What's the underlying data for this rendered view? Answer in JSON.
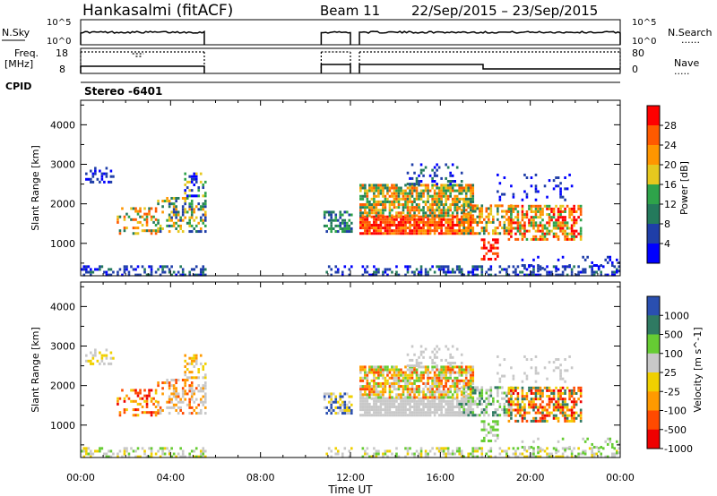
{
  "header": {
    "station": "Hankasalmi (fitACF)",
    "beam": "Beam 11",
    "date_range": "22/Sep/2015 – 23/Sep/2015"
  },
  "labels": {
    "nsky": "N.Sky",
    "nsearch": "N.Search",
    "freq_line1": "Freq.",
    "freq_line2": "[MHz]",
    "nave": "Nave",
    "cpid": "CPID",
    "cpid_value": "Stereo -6401",
    "noise_ticks_left": [
      "10^5",
      "10^0"
    ],
    "noise_ticks_right": [
      "10^5",
      "10^0"
    ],
    "freq_ticks": [
      "18",
      "8"
    ],
    "nave_ticks": [
      "80",
      "0"
    ],
    "dotted_key": "......",
    "dotted_key2": "....."
  },
  "chart_data": [
    {
      "type": "heatmap",
      "name": "power",
      "ylabel": "Slant Range [km]",
      "xlabel": "Time UT",
      "xticks": [
        "00:00",
        "04:00",
        "08:00",
        "12:00",
        "16:00",
        "20:00",
        "00:00"
      ],
      "xlim_hours": [
        0,
        24
      ],
      "yticks": [
        "4000",
        "3000",
        "2000",
        "1000"
      ],
      "ylim_km": [
        180,
        4620
      ],
      "colorbar": {
        "label": "Power [dB]",
        "ticks": [
          "28",
          "24",
          "20",
          "16",
          "12",
          "8",
          "4"
        ],
        "colors": [
          "#ff0000",
          "#ff5a00",
          "#ff9600",
          "#e6c81e",
          "#2ea34a",
          "#247a5c",
          "#1f3ea8",
          "#0000ff"
        ]
      },
      "data_gaps_hours": [
        [
          5.5,
          10.7
        ],
        [
          12.0,
          12.4
        ]
      ]
    },
    {
      "type": "heatmap",
      "name": "velocity",
      "ylabel": "Slant Range [km]",
      "xlabel": "Time UT",
      "xticks": [
        "00:00",
        "04:00",
        "08:00",
        "12:00",
        "16:00",
        "20:00",
        "00:00"
      ],
      "yticks": [
        "4000",
        "3000",
        "2000",
        "1000"
      ],
      "ylim_km": [
        180,
        4620
      ],
      "colorbar": {
        "label": "Velocity [m s^-1]",
        "ticks": [
          "1000",
          "500",
          "100",
          "25",
          "-25",
          "-100",
          "-500",
          "-1000"
        ],
        "colors": [
          "#2a4fb0",
          "#2f7a62",
          "#66cc33",
          "#c8c8c8",
          "#f0d000",
          "#ff9a00",
          "#ff4a00",
          "#ee0000"
        ]
      },
      "data_gaps_hours": [
        [
          5.5,
          10.7
        ],
        [
          12.0,
          12.4
        ]
      ]
    }
  ]
}
